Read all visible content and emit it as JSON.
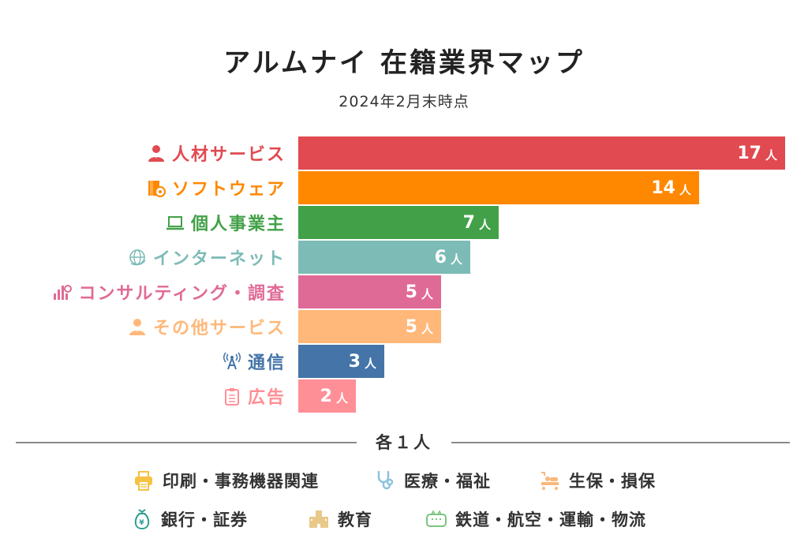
{
  "chart_data": {
    "type": "bar",
    "orientation": "horizontal",
    "title": "アルムナイ 在籍業界マップ",
    "subtitle": "2024年2月末時点",
    "unit": "人",
    "categories": [
      "人材サービス",
      "ソフトウェア",
      "個人事業主",
      "インターネット",
      "コンサルティング・調査",
      "その他サービス",
      "通信",
      "広告"
    ],
    "values": [
      17,
      14,
      7,
      6,
      5,
      5,
      3,
      2
    ],
    "value_labels": [
      "17",
      "14",
      "7",
      "6",
      "5",
      "5",
      "3",
      "2"
    ],
    "colors": [
      "#e04a50",
      "#ff8800",
      "#42a148",
      "#7dbbb6",
      "#e06a96",
      "#ffb87a",
      "#4474a8",
      "#ff8f96"
    ],
    "icons": [
      "person-icon",
      "software-box-icon",
      "laptop-icon",
      "globe-icon",
      "chart-search-icon",
      "person-icon",
      "antenna-icon",
      "clipboard-icon"
    ],
    "xlim": [
      0,
      17
    ],
    "grid": false,
    "legend": "none"
  },
  "misc": {
    "header": "各１人",
    "items": [
      {
        "label": "印刷・事務機器関連",
        "icon": "printer-icon",
        "color": "#f5c242"
      },
      {
        "label": "医療・福祉",
        "icon": "stethoscope-icon",
        "color": "#8ec3e0"
      },
      {
        "label": "生保・損保",
        "icon": "hospital-bed-icon",
        "color": "#f7b97e"
      },
      {
        "label": "銀行・証券",
        "icon": "money-bag-icon",
        "color": "#2a9d8f"
      },
      {
        "label": "教育",
        "icon": "school-building-icon",
        "color": "#e8c98a"
      },
      {
        "label": "鉄道・航空・運輸・物流",
        "icon": "train-icon",
        "color": "#7cc47f"
      }
    ]
  }
}
